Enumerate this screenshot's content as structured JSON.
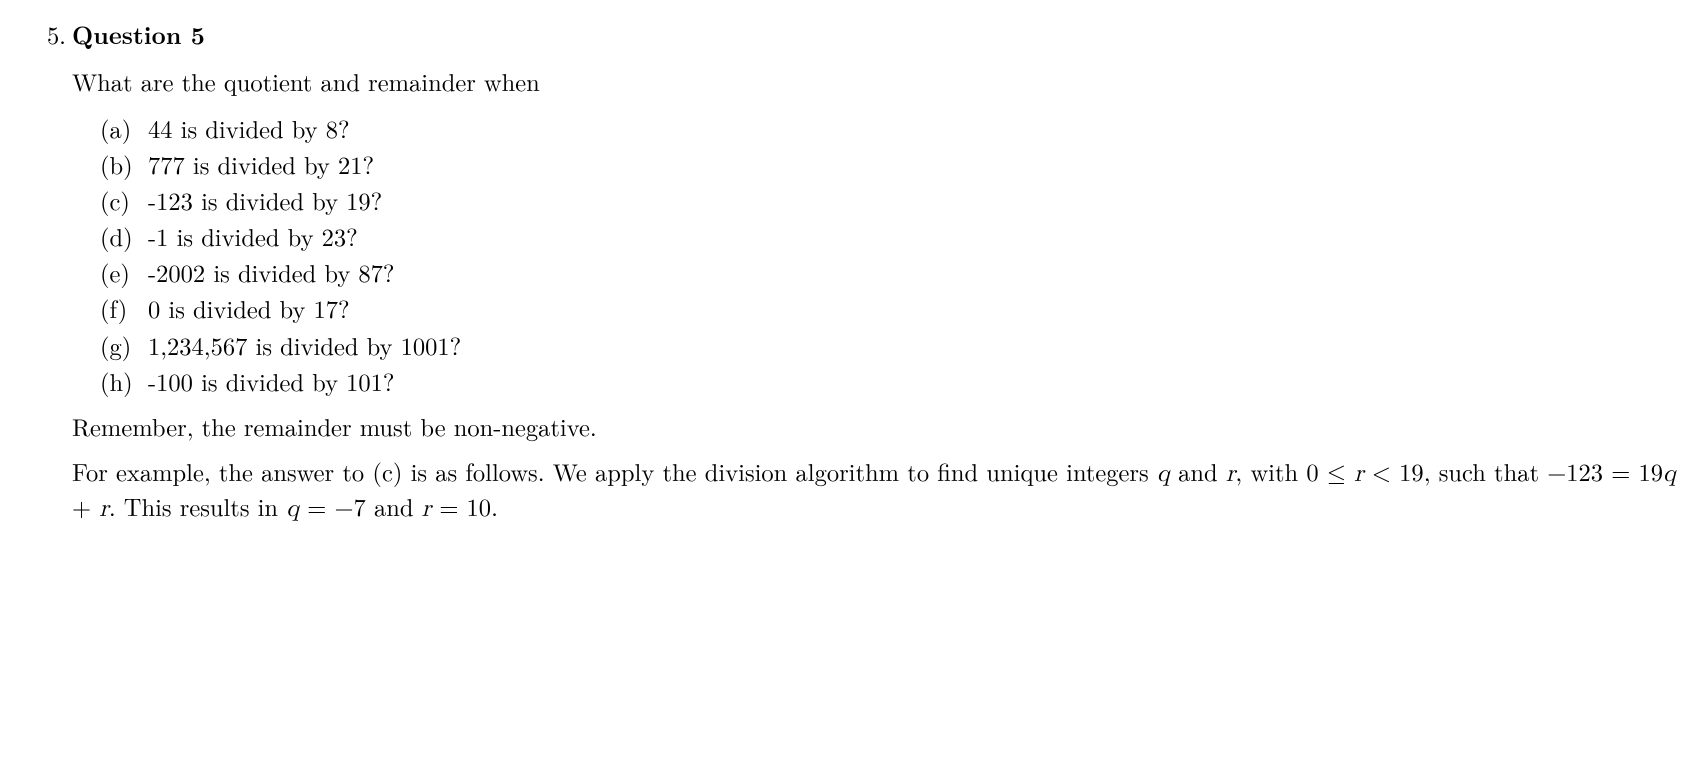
{
  "page": {
    "background_color": "#ffffff",
    "text_color": "#000000",
    "font_family": "Latin Modern Roman / Computer Modern serif",
    "base_fontsize_pt": 18
  },
  "problem": {
    "number": "5.",
    "title": "Question 5",
    "intro": "What are the quotient and remainder when",
    "parts": [
      {
        "label": "(a)",
        "text": "44 is divided by 8?"
      },
      {
        "label": "(b)",
        "text": "777 is divided by 21?"
      },
      {
        "label": "(c)",
        "text": "-123 is divided by 19?"
      },
      {
        "label": "(d)",
        "text": "-1 is divided by 23?"
      },
      {
        "label": "(e)",
        "text": "-2002 is divided by 87?"
      },
      {
        "label": "(f)",
        "text": "0 is divided by 17?"
      },
      {
        "label": "(g)",
        "text": "1,234,567 is divided by 1001?"
      },
      {
        "label": "(h)",
        "text": "-100 is divided by 101?"
      }
    ],
    "note": "Remember, the remainder must be non-negative.",
    "example_lead": "For example, the answer to (c) is as follows. We apply the division algorithm to find unique integers ",
    "example_mid1": " and ",
    "example_mid2": ", with ",
    "example_ineq": "0 ≤ r < 19",
    "example_mid3": ", such that ",
    "example_eq1": "−123 = 19q + r",
    "example_mid4": ". This results in ",
    "example_eq2": "q = −7",
    "example_mid5": " and ",
    "example_eq3": "r = 10",
    "example_end": ".",
    "var_q": "q",
    "var_r": "r"
  }
}
